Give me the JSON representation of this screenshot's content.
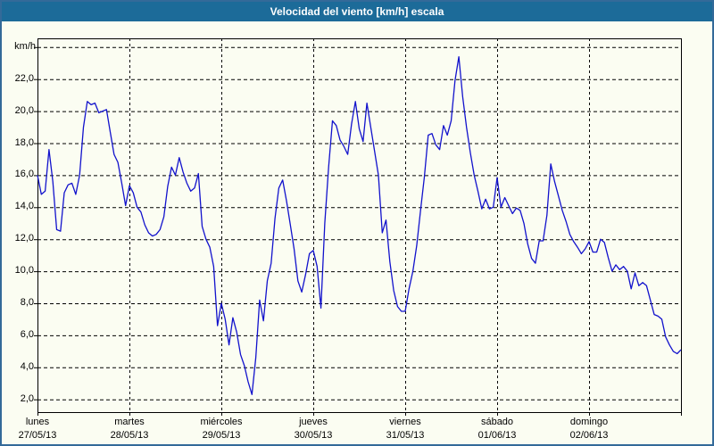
{
  "header": {
    "title": "Velocidad del viento [km/h] escala"
  },
  "colors": {
    "header_bg": "#1c6b99",
    "header_text": "#ffffff",
    "frame_border": "#336a99",
    "background": "#fbfdf2",
    "line": "#1212cc",
    "grid": "#000000",
    "text": "#000000"
  },
  "chart_data": {
    "type": "line",
    "title": "Velocidad del viento [km/h] escala",
    "legend": "none",
    "grid": "dashed",
    "y_axis": {
      "unit": "km/h",
      "min": 2,
      "max": 24,
      "tick_step": 2,
      "tick_labels": [
        {
          "value": 2,
          "label": "2,0"
        },
        {
          "value": 4,
          "label": "4,0"
        },
        {
          "value": 6,
          "label": "6,0"
        },
        {
          "value": 8,
          "label": "8,0"
        },
        {
          "value": 10,
          "label": "10,0"
        },
        {
          "value": 12,
          "label": "12,0"
        },
        {
          "value": 14,
          "label": "14,0"
        },
        {
          "value": 16,
          "label": "16,0"
        },
        {
          "value": 18,
          "label": "18,0"
        },
        {
          "value": 20,
          "label": "20,0"
        },
        {
          "value": 22,
          "label": "22,0"
        }
      ]
    },
    "x_axis": {
      "hours_per_day": 24,
      "days": [
        {
          "name": "lunes",
          "date": "27/05/13"
        },
        {
          "name": "martes",
          "date": "28/05/13"
        },
        {
          "name": "miércoles",
          "date": "29/05/13"
        },
        {
          "name": "jueves",
          "date": "30/05/13"
        },
        {
          "name": "viernes",
          "date": "31/05/13"
        },
        {
          "name": "sábado",
          "date": "01/06/13"
        },
        {
          "name": "domingo",
          "date": "02/06/13"
        }
      ]
    },
    "series": [
      {
        "name": "velocidad del viento",
        "unit": "km/h",
        "sampling": "hourly",
        "values": [
          16.0,
          14.8,
          15.0,
          17.6,
          15.6,
          12.6,
          12.5,
          14.9,
          15.4,
          15.5,
          14.8,
          16.0,
          19.0,
          20.6,
          20.4,
          20.5,
          19.9,
          20.0,
          20.1,
          18.7,
          17.3,
          16.8,
          15.5,
          14.1,
          15.35,
          14.9,
          14.0,
          13.7,
          12.9,
          12.4,
          12.2,
          12.3,
          12.6,
          13.4,
          15.3,
          16.5,
          16.0,
          17.1,
          16.2,
          15.5,
          15.0,
          15.2,
          16.1,
          12.8,
          12.0,
          11.5,
          10.3,
          6.6,
          8.0,
          7.0,
          5.4,
          7.1,
          6.2,
          4.8,
          4.1,
          3.1,
          2.3,
          4.6,
          8.2,
          6.9,
          9.4,
          10.5,
          13.3,
          15.2,
          15.7,
          14.4,
          12.9,
          11.4,
          9.4,
          8.7,
          9.8,
          11.1,
          11.3,
          10.3,
          7.7,
          13.0,
          16.5,
          19.4,
          19.1,
          18.2,
          17.8,
          17.3,
          19.2,
          20.6,
          18.9,
          18.1,
          20.5,
          19.0,
          17.5,
          16.0,
          12.4,
          13.2,
          10.6,
          8.8,
          7.8,
          7.5,
          7.5,
          8.9,
          10.0,
          11.6,
          13.8,
          15.9,
          18.5,
          18.6,
          17.9,
          17.6,
          19.1,
          18.5,
          19.4,
          21.9,
          23.4,
          20.9,
          19.0,
          17.4,
          16.0,
          15.0,
          13.9,
          14.5,
          13.9,
          14.0,
          15.85,
          14.0,
          14.6,
          14.1,
          13.6,
          13.95,
          13.8,
          13.0,
          11.7,
          10.8,
          10.5,
          11.9,
          11.9,
          13.5,
          16.7,
          15.6,
          14.7,
          13.8,
          13.1,
          12.3,
          11.85,
          11.5,
          11.1,
          11.4,
          11.85,
          11.2,
          11.2,
          12.0,
          11.8,
          10.85,
          10.0,
          10.4,
          10.1,
          10.3,
          10.0,
          8.9,
          9.9,
          9.1,
          9.3,
          9.1,
          8.2,
          7.3,
          7.2,
          7.0,
          5.9,
          5.4,
          5.0,
          4.85,
          5.1
        ]
      }
    ]
  }
}
